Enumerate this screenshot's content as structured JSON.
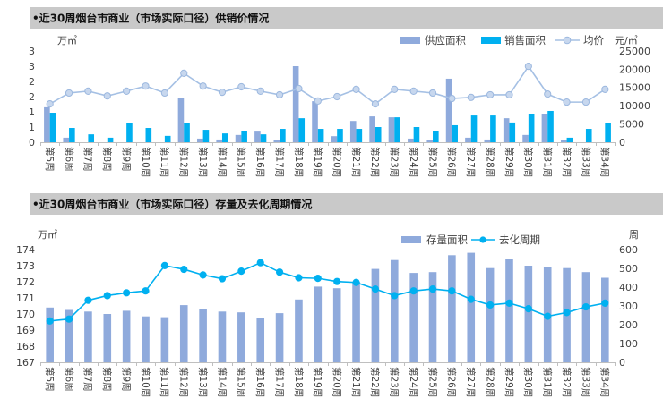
{
  "chart_data": [
    {
      "type": "bar",
      "title": "•近30周烟台市商业（市场实际口径）供销价情况",
      "categories": [
        "第5周",
        "第6周",
        "第7周",
        "第8周",
        "第9周",
        "第10周",
        "第11周",
        "第12周",
        "第13周",
        "第14周",
        "第15周",
        "第16周",
        "第17周",
        "第18周",
        "第19周",
        "第20周",
        "第21周",
        "第22周",
        "第23周",
        "第24周",
        "第25周",
        "第26周",
        "第27周",
        "第28周",
        "第29周",
        "第30周",
        "第31周",
        "第32周",
        "第33周",
        "第34周"
      ],
      "y_left": {
        "unit": "万㎡",
        "range": [
          0,
          3
        ],
        "ticks": [
          0,
          0.5,
          1,
          1.5,
          2,
          2.5,
          3
        ],
        "tick_labels": [
          "0",
          "1",
          "1",
          "2",
          "2",
          "3",
          "3"
        ]
      },
      "y_right": {
        "unit": "元/㎡",
        "range": [
          0,
          25000
        ],
        "ticks": [
          0,
          5000,
          10000,
          15000,
          20000,
          25000
        ],
        "tick_labels": [
          "0",
          "5000",
          "10000",
          "15000",
          "20000",
          "25000"
        ]
      },
      "series": [
        {
          "name": "供应面积",
          "type": "bar",
          "axis": "left",
          "color": "#8FAADC",
          "values": [
            1.15,
            0.15,
            0,
            0,
            0,
            0,
            0,
            1.47,
            0.12,
            0.09,
            0.24,
            0.35,
            0.06,
            2.5,
            1.35,
            0.2,
            0.7,
            0.85,
            0.82,
            0.12,
            0.06,
            2.09,
            0.15,
            0.09,
            0.79,
            0.24,
            0.94,
            0.06,
            0,
            0
          ]
        },
        {
          "name": "销售面积",
          "type": "bar",
          "axis": "left",
          "color": "#00B0F0",
          "values": [
            0.97,
            0.47,
            0.26,
            0.15,
            0.62,
            0.47,
            0.21,
            0.62,
            0.41,
            0.29,
            0.38,
            0.26,
            0.44,
            0.79,
            0.44,
            0.44,
            0.44,
            0.5,
            0.82,
            0.5,
            0.38,
            0.56,
            0.88,
            0.88,
            0.65,
            0.94,
            1.03,
            0.15,
            0.44,
            0.62
          ]
        },
        {
          "name": "均价",
          "type": "line",
          "axis": "right",
          "color": "#A5C0E4",
          "marker": "circle",
          "marker_fill": "#C7D7EE",
          "values": [
            10500,
            13500,
            14000,
            12700,
            14000,
            15400,
            13500,
            18900,
            15400,
            13700,
            15200,
            14000,
            13000,
            14700,
            11300,
            12500,
            14500,
            10500,
            14500,
            14000,
            13500,
            12000,
            12300,
            13000,
            13000,
            20800,
            13200,
            11000,
            11000,
            14500
          ]
        }
      ],
      "legend": "top-right",
      "grid": false
    },
    {
      "type": "bar",
      "title": "•近30周烟台市商业（市场实际口径）存量及去化周期情况",
      "categories": [
        "第5周",
        "第6周",
        "第7周",
        "第8周",
        "第9周",
        "第10周",
        "第11周",
        "第12周",
        "第13周",
        "第14周",
        "第15周",
        "第16周",
        "第17周",
        "第18周",
        "第19周",
        "第20周",
        "第21周",
        "第22周",
        "第23周",
        "第24周",
        "第25周",
        "第26周",
        "第27周",
        "第28周",
        "第29周",
        "第30周",
        "第31周",
        "第32周",
        "第33周",
        "第34周"
      ],
      "y_left": {
        "unit": "万㎡",
        "range": [
          167,
          174
        ],
        "ticks": [
          167,
          168,
          169,
          170,
          171,
          172,
          173,
          174
        ],
        "tick_labels": [
          "167",
          "168",
          "169",
          "170",
          "171",
          "172",
          "173",
          "174"
        ]
      },
      "y_right": {
        "unit": "周",
        "range": [
          0,
          600
        ],
        "ticks": [
          0,
          100,
          200,
          300,
          400,
          500,
          600
        ],
        "tick_labels": [
          "0",
          "100",
          "200",
          "300",
          "400",
          "500",
          "600"
        ]
      },
      "series": [
        {
          "name": "存量面积",
          "type": "bar",
          "axis": "left",
          "color": "#8FAADC",
          "values": [
            170.4,
            170.25,
            170.15,
            170.0,
            170.2,
            169.85,
            169.8,
            170.55,
            170.3,
            170.15,
            170.1,
            169.75,
            170.05,
            170.9,
            171.7,
            171.6,
            172.0,
            172.8,
            173.35,
            172.55,
            172.6,
            173.65,
            173.8,
            172.85,
            173.4,
            173.0,
            172.9,
            172.85,
            172.6,
            172.25
          ]
        },
        {
          "name": "去化周期",
          "type": "line",
          "axis": "right",
          "color": "#00B0F0",
          "marker": "circle",
          "marker_fill": "#00B0F0",
          "values": [
            220,
            230,
            330,
            355,
            370,
            380,
            515,
            495,
            465,
            445,
            485,
            530,
            480,
            450,
            447,
            430,
            425,
            390,
            355,
            380,
            390,
            380,
            335,
            305,
            315,
            285,
            245,
            265,
            295,
            315
          ]
        }
      ],
      "legend": "top-right",
      "grid": false
    }
  ]
}
